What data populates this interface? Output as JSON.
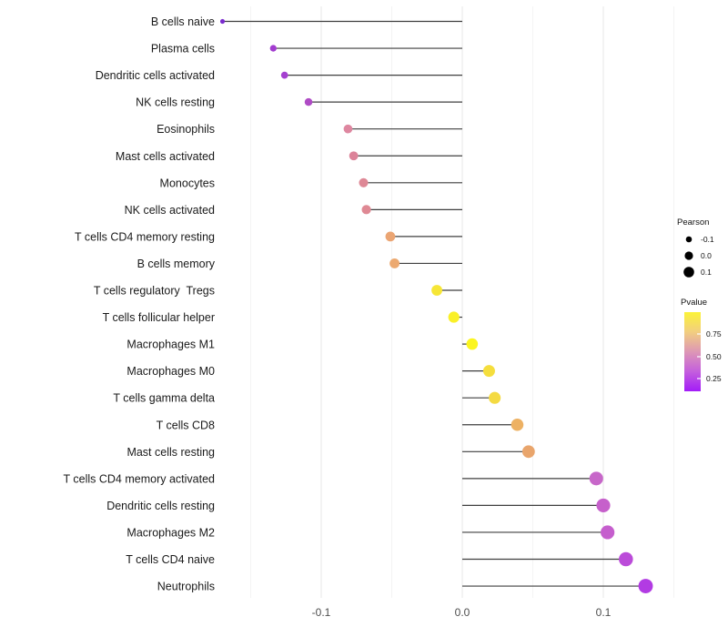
{
  "figure": {
    "background": "#FFFFFF",
    "x_axis": {
      "tick_labels": [
        "-0.1",
        "0.0",
        "0.1"
      ],
      "tick_values": [
        -0.1,
        0.0,
        0.1
      ],
      "minor_tick_values": [
        -0.15,
        -0.05,
        0.05,
        0.15
      ]
    },
    "legend": {
      "size": {
        "title": "Pearson",
        "items": [
          {
            "label": "-0.1"
          },
          {
            "label": "0.0"
          },
          {
            "label": "0.1"
          }
        ],
        "dot_color": "#000000"
      },
      "color": {
        "title": "Pvalue",
        "tick_labels": [
          "0.75",
          "0.50",
          "0.25"
        ],
        "gradient_top_to_bottom": [
          "#FBF338",
          "#F2CE80",
          "#DD97B5",
          "#C45FDD",
          "#A31CF8"
        ]
      }
    },
    "colors": {
      "stem": "#3F3F3F",
      "grid_major": "#E7E7E7",
      "grid_minor": "#F4F4F4",
      "label_text": "#1A1A1A",
      "axis_text": "#4D4D4D"
    }
  },
  "chart_data": {
    "type": "lollipop",
    "orientation": "horizontal",
    "title": "",
    "xlabel": "",
    "ylabel": "",
    "x_range": [
      -0.19,
      0.155
    ],
    "x_ticks": [
      -0.1,
      0.0,
      0.1
    ],
    "size_encoding": "Pearson correlation (larger dot = higher value)",
    "color_encoding": "Pvalue (yellow = high ~0.9, orange ~0.7, pink ~0.5, violet = low ~0.1)",
    "points": [
      {
        "category": "B cells naive",
        "pearson": -0.17,
        "pvalue_est": 0.05,
        "color": "#7A2BCE"
      },
      {
        "category": "Plasma cells",
        "pearson": -0.134,
        "pvalue_est": 0.15,
        "color": "#A23CCF"
      },
      {
        "category": "Dendritic cells activated",
        "pearson": -0.126,
        "pvalue_est": 0.16,
        "color": "#A440D0"
      },
      {
        "category": "NK cells resting",
        "pearson": -0.109,
        "pvalue_est": 0.2,
        "color": "#AF4BC5"
      },
      {
        "category": "Eosinophils",
        "pearson": -0.081,
        "pvalue_est": 0.45,
        "color": "#DE87A0"
      },
      {
        "category": "Mast cells activated",
        "pearson": -0.077,
        "pvalue_est": 0.44,
        "color": "#DC8399"
      },
      {
        "category": "Monocytes",
        "pearson": -0.07,
        "pvalue_est": 0.46,
        "color": "#DE8896"
      },
      {
        "category": "NK cells activated",
        "pearson": -0.068,
        "pvalue_est": 0.46,
        "color": "#DF8994"
      },
      {
        "category": "T cells CD4 memory resting",
        "pearson": -0.051,
        "pvalue_est": 0.62,
        "color": "#EBA573"
      },
      {
        "category": "B cells memory",
        "pearson": -0.048,
        "pvalue_est": 0.63,
        "color": "#ECA970"
      },
      {
        "category": "T cells regulatory  Tregs",
        "pearson": -0.018,
        "pvalue_est": 0.85,
        "color": "#F6E636"
      },
      {
        "category": "T cells follicular helper",
        "pearson": -0.006,
        "pvalue_est": 0.9,
        "color": "#FAF028"
      },
      {
        "category": "Macrophages M1",
        "pearson": 0.007,
        "pvalue_est": 0.92,
        "color": "#FBF51F"
      },
      {
        "category": "Macrophages M0",
        "pearson": 0.019,
        "pvalue_est": 0.8,
        "color": "#F5DE3D"
      },
      {
        "category": "T cells gamma delta",
        "pearson": 0.023,
        "pvalue_est": 0.78,
        "color": "#F4DA42"
      },
      {
        "category": "T cells CD8",
        "pearson": 0.039,
        "pvalue_est": 0.65,
        "color": "#EDB163"
      },
      {
        "category": "Mast cells resting",
        "pearson": 0.047,
        "pvalue_est": 0.6,
        "color": "#E9A56C"
      },
      {
        "category": "T cells CD4 memory activated",
        "pearson": 0.095,
        "pvalue_est": 0.3,
        "color": "#C767C9"
      },
      {
        "category": "Dendritic cells resting",
        "pearson": 0.1,
        "pvalue_est": 0.28,
        "color": "#C660CB"
      },
      {
        "category": "Macrophages M2",
        "pearson": 0.103,
        "pvalue_est": 0.27,
        "color": "#C55ECD"
      },
      {
        "category": "T cells CD4 naive",
        "pearson": 0.116,
        "pvalue_est": 0.18,
        "color": "#BB4BD9"
      },
      {
        "category": "Neutrophils",
        "pearson": 0.13,
        "pvalue_est": 0.12,
        "color": "#B23BE3"
      }
    ]
  }
}
